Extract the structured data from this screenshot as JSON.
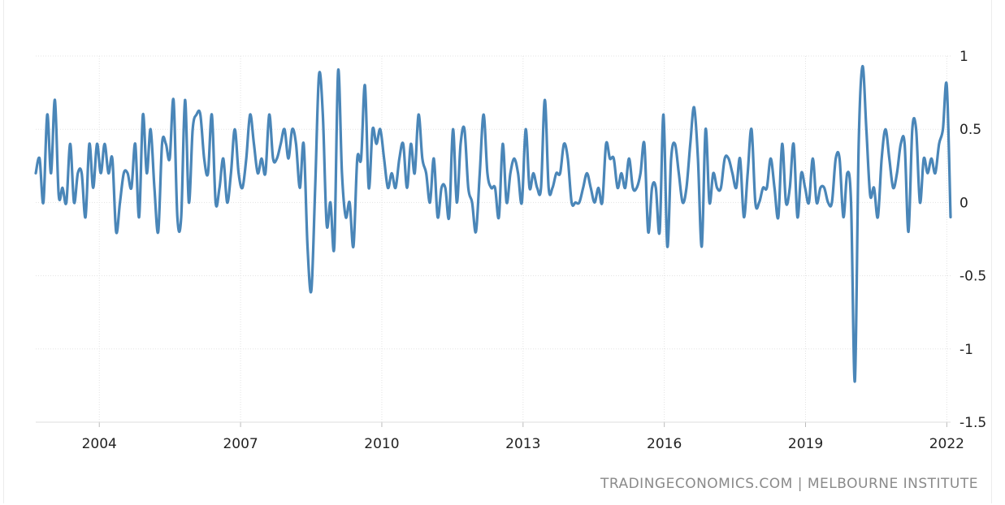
{
  "source_text": "TRADINGECONOMICS.COM | MELBOURNE INSTITUTE",
  "colors": {
    "line": "#4a86b8",
    "grid": "#e3e3e3",
    "text": "#222222",
    "source": "#8a8a8a"
  },
  "chart_data": {
    "type": "line",
    "title": "",
    "xlabel": "",
    "ylabel": "",
    "x_range": [
      2002.65,
      2022.08
    ],
    "ylim": [
      -1.5,
      1
    ],
    "y_ticks": [
      1,
      0.5,
      0,
      -0.5,
      -1,
      -1.5
    ],
    "y_tick_labels": [
      "1",
      "0.5",
      "0",
      "-0.5",
      "-1",
      "-1.5"
    ],
    "x_ticks": [
      2004,
      2007,
      2010,
      2013,
      2016,
      2019,
      2022
    ],
    "x_tick_labels": [
      "2004",
      "2007",
      "2010",
      "2013",
      "2016",
      "2019",
      "2022"
    ],
    "grid": true,
    "y_axis_side": "right",
    "series": [
      {
        "values": [
          0.2,
          0.3,
          0,
          0.6,
          0.2,
          0.7,
          0.05,
          0.1,
          0,
          0.4,
          0,
          0.2,
          0.2,
          -0.1,
          0.4,
          0.1,
          0.4,
          0.2,
          0.4,
          0.2,
          0.3,
          -0.2,
          0,
          0.2,
          0.2,
          0.1,
          0.4,
          -0.1,
          0.6,
          0.2,
          0.5,
          0.1,
          -0.2,
          0.4,
          0.4,
          0.3,
          0.7,
          -0.1,
          -0.1,
          0.7,
          0,
          0.5,
          0.6,
          0.6,
          0.3,
          0.2,
          0.6,
          0,
          0.1,
          0.3,
          0,
          0.2,
          0.5,
          0.2,
          0.1,
          0.3,
          0.6,
          0.4,
          0.2,
          0.3,
          0.2,
          0.6,
          0.3,
          0.3,
          0.4,
          0.5,
          0.3,
          0.5,
          0.4,
          0.1,
          0.4,
          -0.3,
          -0.6,
          0.1,
          0.87,
          0.6,
          -0.15,
          0,
          -0.3,
          0.9,
          0.2,
          -0.1,
          0,
          -0.3,
          0.3,
          0.3,
          0.8,
          0.1,
          0.5,
          0.4,
          0.5,
          0.3,
          0.1,
          0.2,
          0.1,
          0.3,
          0.4,
          0.1,
          0.4,
          0.2,
          0.6,
          0.3,
          0.2,
          0,
          0.3,
          -0.1,
          0.1,
          0.1,
          -0.1,
          0.5,
          0,
          0.4,
          0.5,
          0.1,
          0,
          -0.2,
          0.2,
          0.6,
          0.2,
          0.1,
          0.1,
          -0.1,
          0.4,
          0,
          0.2,
          0.3,
          0.2,
          0,
          0.5,
          0.1,
          0.2,
          0.1,
          0.1,
          0.7,
          0.1,
          0.1,
          0.2,
          0.2,
          0.4,
          0.3,
          0,
          0,
          0,
          0.1,
          0.2,
          0.1,
          0,
          0.1,
          0,
          0.4,
          0.3,
          0.3,
          0.1,
          0.2,
          0.1,
          0.3,
          0.1,
          0.1,
          0.2,
          0.4,
          -0.2,
          0.1,
          0.1,
          -0.2,
          0.6,
          -0.3,
          0.3,
          0.4,
          0.2,
          0,
          0.1,
          0.4,
          0.65,
          0.3,
          -0.3,
          0.5,
          0,
          0.2,
          0.1,
          0.1,
          0.3,
          0.3,
          0.2,
          0.1,
          0.3,
          -0.1,
          0.2,
          0.5,
          0,
          0,
          0.1,
          0.1,
          0.3,
          0.1,
          -0.1,
          0.4,
          0,
          0.1,
          0.4,
          -0.1,
          0.2,
          0.1,
          0,
          0.3,
          0,
          0.1,
          0.1,
          0,
          0,
          0.3,
          0.3,
          -0.1,
          0.2,
          0,
          -1.22,
          0.4,
          0.93,
          0.5,
          0.05,
          0.1,
          -0.1,
          0.3,
          0.5,
          0.3,
          0.1,
          0.2,
          0.4,
          0.4,
          -0.2,
          0.5,
          0.5,
          0,
          0.3,
          0.2,
          0.3,
          0.2,
          0.4,
          0.5,
          0.8,
          -0.1
        ]
      }
    ]
  }
}
